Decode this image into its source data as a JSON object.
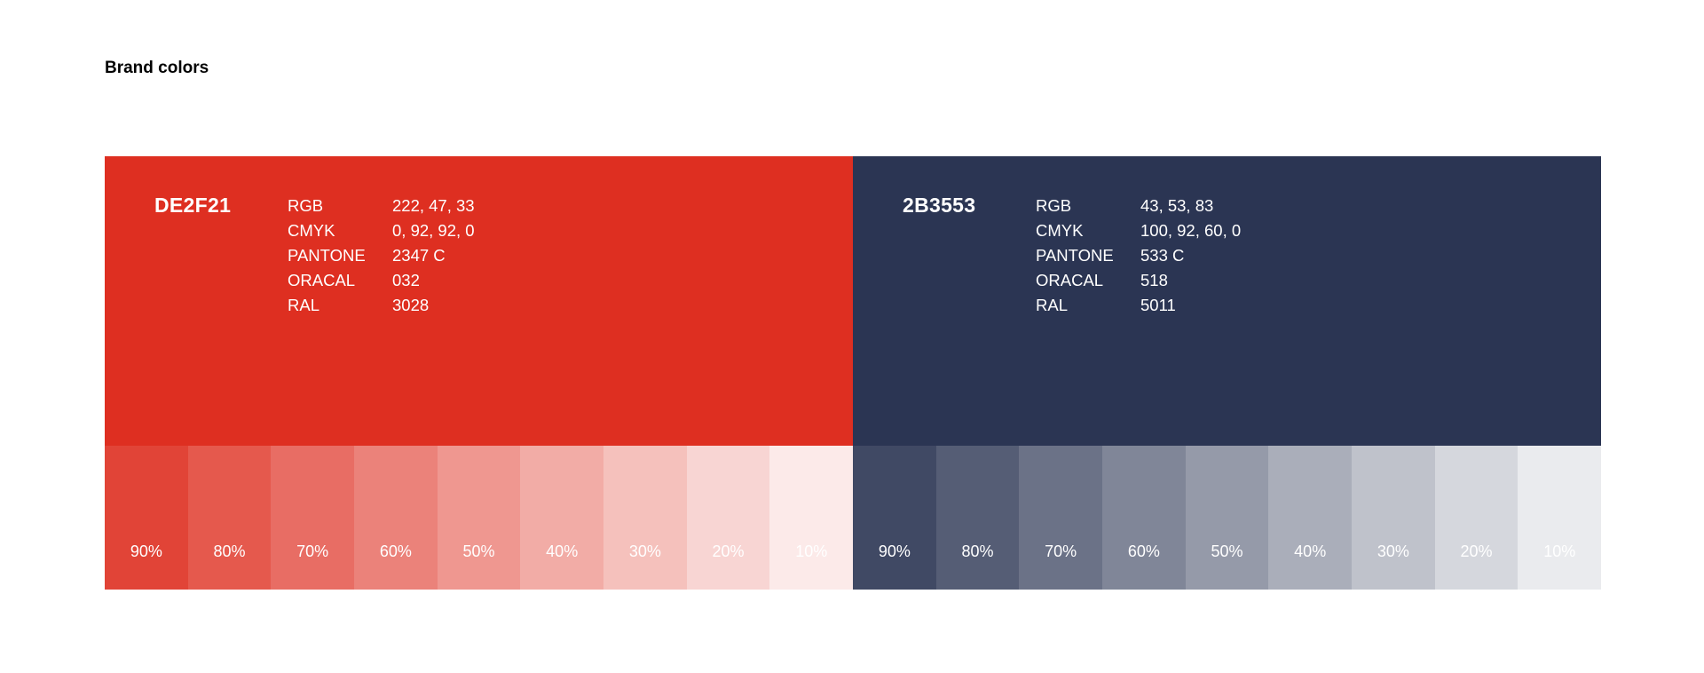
{
  "page": {
    "title": "Brand colors"
  },
  "brands": [
    {
      "hex": "DE2F21",
      "color": "#DE2F21",
      "specs": [
        {
          "label": "RGB",
          "value": "222, 47, 33"
        },
        {
          "label": "CMYK",
          "value": "0, 92, 92, 0"
        },
        {
          "label": "PANTONE",
          "value": "2347 C"
        },
        {
          "label": "ORACAL",
          "value": "032"
        },
        {
          "label": "RAL",
          "value": "3028"
        }
      ],
      "tints": [
        {
          "label": "90%",
          "percent": 90
        },
        {
          "label": "80%",
          "percent": 80
        },
        {
          "label": "70%",
          "percent": 70
        },
        {
          "label": "60%",
          "percent": 60
        },
        {
          "label": "50%",
          "percent": 50
        },
        {
          "label": "40%",
          "percent": 40
        },
        {
          "label": "30%",
          "percent": 30
        },
        {
          "label": "20%",
          "percent": 20
        },
        {
          "label": "10%",
          "percent": 10
        }
      ]
    },
    {
      "hex": "2B3553",
      "color": "#2B3553",
      "specs": [
        {
          "label": "RGB",
          "value": "43, 53, 83"
        },
        {
          "label": "CMYK",
          "value": "100, 92, 60, 0"
        },
        {
          "label": "PANTONE",
          "value": "533 C"
        },
        {
          "label": "ORACAL",
          "value": "518"
        },
        {
          "label": "RAL",
          "value": "5011"
        }
      ],
      "tints": [
        {
          "label": "90%",
          "percent": 90
        },
        {
          "label": "80%",
          "percent": 80
        },
        {
          "label": "70%",
          "percent": 70
        },
        {
          "label": "60%",
          "percent": 60
        },
        {
          "label": "50%",
          "percent": 50
        },
        {
          "label": "40%",
          "percent": 40
        },
        {
          "label": "30%",
          "percent": 30
        },
        {
          "label": "20%",
          "percent": 20
        },
        {
          "label": "10%",
          "percent": 10
        }
      ]
    }
  ]
}
